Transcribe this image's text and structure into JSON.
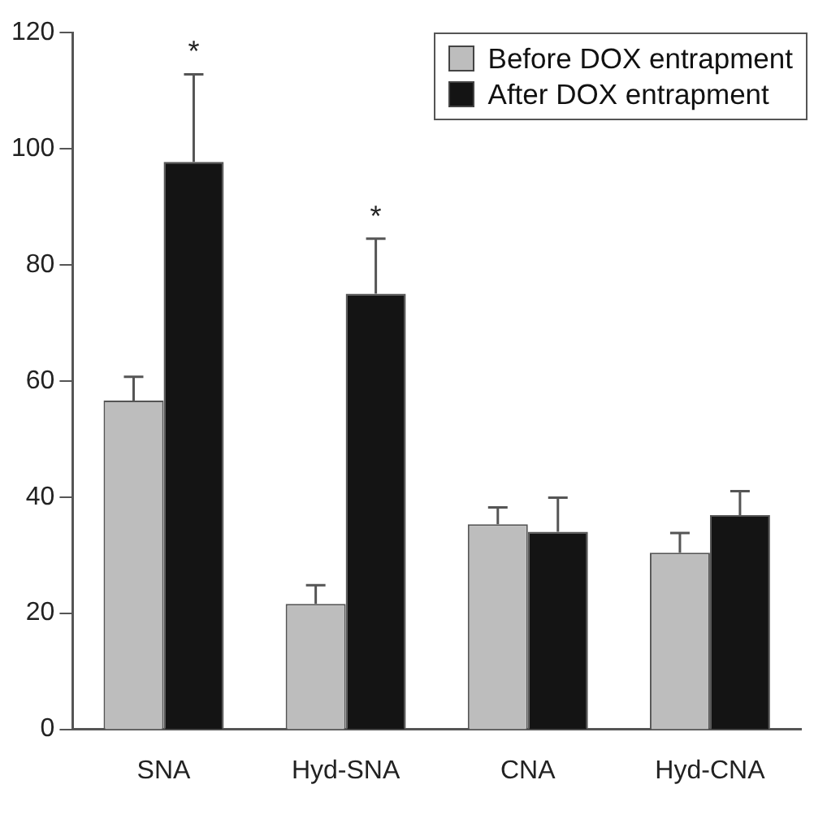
{
  "chart_data": {
    "type": "bar",
    "categories": [
      "SNA",
      "Hyd-SNA",
      "CNA",
      "Hyd-CNA"
    ],
    "series": [
      {
        "name": "Before DOX entrapment",
        "color": "#bdbdbd",
        "values": [
          56.6,
          21.6,
          35.3,
          30.4
        ],
        "errors": [
          [
            56.6,
            60.7
          ],
          [
            21.6,
            24.8
          ],
          [
            35.3,
            38.2
          ],
          [
            30.4,
            33.8
          ]
        ]
      },
      {
        "name": "After DOX entrapment",
        "color": "#141414",
        "values": [
          97.7,
          75,
          34,
          36.9
        ],
        "errors": [
          [
            97.7,
            112.8
          ],
          [
            75,
            84.5
          ],
          [
            34,
            39.9
          ],
          [
            36.9,
            41
          ]
        ]
      }
    ],
    "annotations": [
      "*",
      "*"
    ],
    "ylim": [
      0,
      120
    ],
    "yticks": [
      0,
      20,
      40,
      60,
      80,
      100,
      120
    ],
    "grid": false,
    "legend": "top right"
  }
}
